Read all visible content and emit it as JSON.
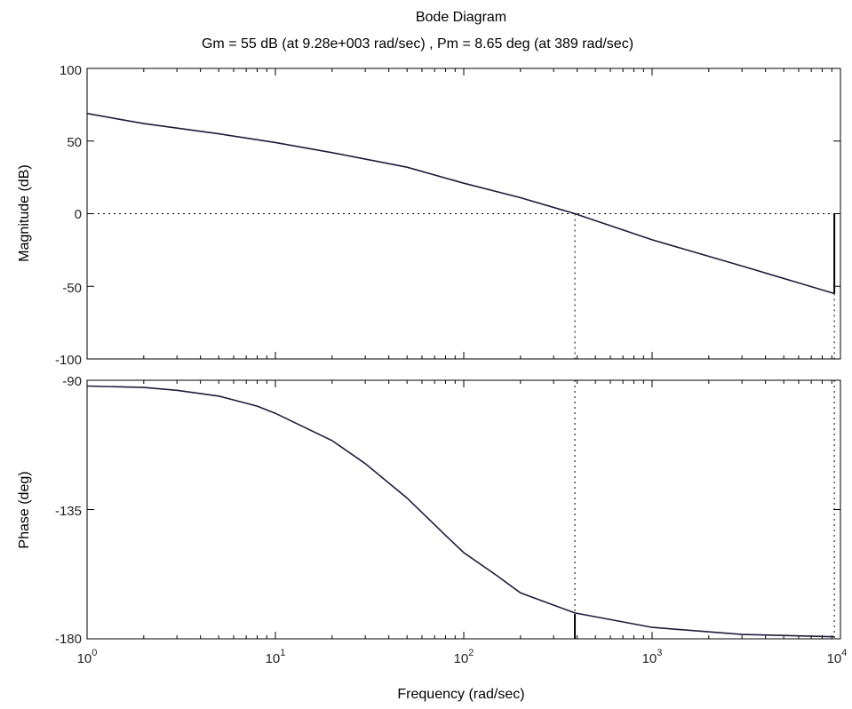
{
  "chart_data": {
    "type": "line",
    "title": "Bode Diagram",
    "subtitle": "Gm = 55 dB (at 9.28e+003 rad/sec) ,  Pm = 8.65 deg (at 389 rad/sec)",
    "xlabel": "Frequency  (rad/sec)",
    "x_scale": "log",
    "xlim": [
      1,
      10000
    ],
    "x_tick_values": [
      1,
      10,
      100,
      1000,
      10000
    ],
    "x_tick_labels": [
      {
        "base": "10",
        "exp": "0"
      },
      {
        "base": "10",
        "exp": "1"
      },
      {
        "base": "10",
        "exp": "2"
      },
      {
        "base": "10",
        "exp": "3"
      },
      {
        "base": "10",
        "exp": "4"
      }
    ],
    "grid": false,
    "subplots": [
      {
        "name": "magnitude",
        "ylabel": "Magnitude (dB)",
        "ylim": [
          -100,
          100
        ],
        "y_ticks": [
          100,
          50,
          0,
          -50,
          -100
        ],
        "reference_line": 0,
        "x": [
          1,
          2,
          5,
          10,
          20,
          50,
          100,
          200,
          389,
          1000,
          3000,
          9280
        ],
        "y": [
          69,
          62,
          55,
          49,
          42,
          32,
          21,
          11,
          0,
          -18,
          -36,
          -55
        ]
      },
      {
        "name": "phase",
        "ylabel": "Phase (deg)",
        "ylim": [
          -180,
          -90
        ],
        "y_ticks": [
          -90,
          -135,
          -180
        ],
        "reference_line": -180,
        "x": [
          1,
          2,
          3,
          5,
          8,
          10,
          20,
          30,
          50,
          80,
          100,
          150,
          200,
          389,
          1000,
          3000,
          9280
        ],
        "y": [
          -92,
          -92.5,
          -93.5,
          -95.5,
          -99,
          -101.5,
          -111,
          -119,
          -131,
          -144,
          -150,
          -158,
          -164,
          -171,
          -176,
          -178.5,
          -179.3
        ]
      }
    ],
    "margins": {
      "gain_margin_db": 55,
      "gain_crossover_freq": 9280,
      "phase_margin_deg": 8.65,
      "phase_crossover_freq": 389
    },
    "line_color": "#1c1c3c"
  }
}
